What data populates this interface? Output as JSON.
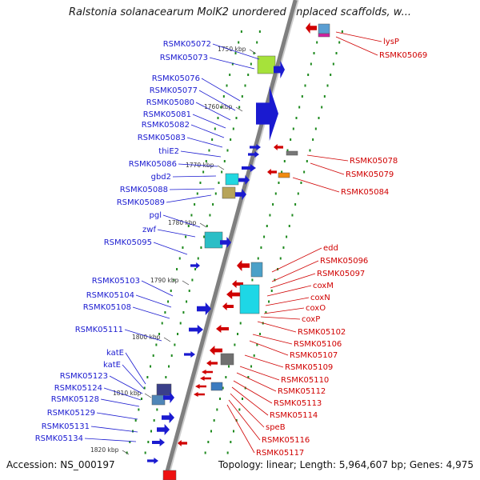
{
  "title": "Ralstonia solanacearum MolK2 unordered unplaced scaffolds, w...",
  "footer": {
    "accession": "Accession: NS_000197",
    "topology": "Topology: linear; Length: 5,964,607 bp; Genes: 4,975"
  },
  "colors": {
    "forward_strand": "#1a1ad0",
    "reverse_strand": "#d00000",
    "backbone": "#7f7f7f",
    "tick": "#1e8a1e"
  },
  "scale_marks": [
    "1750 kbp",
    "1760 kbp",
    "1770 kbp",
    "1780 kbp",
    "1790 kbp",
    "1800 kbp",
    "1810 kbp",
    "1820 kbp"
  ],
  "left_genes": [
    "RSMK05072",
    "RSMK05073",
    "RSMK05076",
    "RSMK05077",
    "RSMK05080",
    "RSMK05081",
    "RSMK05082",
    "RSMK05083",
    "thiE2",
    "RSMK05086",
    "gbd2",
    "RSMK05088",
    "RSMK05089",
    "pgl",
    "zwf",
    "RSMK05095",
    "RSMK05103",
    "RSMK05104",
    "RSMK05108",
    "RSMK05111",
    "katE",
    "katE",
    "RSMK05123",
    "RSMK05124",
    "RSMK05128",
    "RSMK05129",
    "RSMK05131",
    "RSMK05134"
  ],
  "right_genes": [
    "lysP",
    "RSMK05069",
    "RSMK05078",
    "RSMK05079",
    "RSMK05084",
    "edd",
    "RSMK05096",
    "RSMK05097",
    "coxM",
    "coxN",
    "coxO",
    "coxP",
    "RSMK05102",
    "RSMK05106",
    "RSMK05107",
    "RSMK05109",
    "RSMK05110",
    "RSMK05112",
    "RSMK05113",
    "RSMK05114",
    "speB",
    "RSMK05116",
    "RSMK05117"
  ]
}
